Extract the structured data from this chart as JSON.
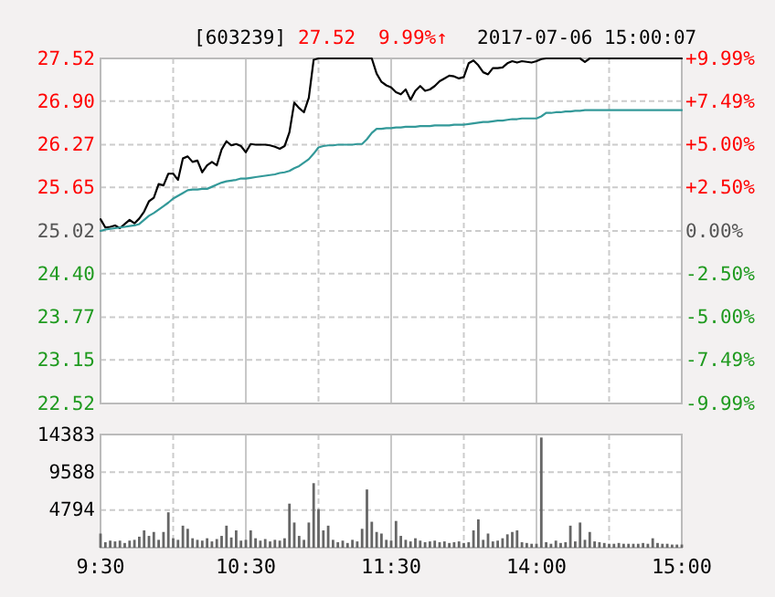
{
  "chart_data": [
    {
      "type": "line",
      "title": "[603239]",
      "annotations": [
        "27.52",
        "9.99%↑",
        "2017-07-06 15:00:07"
      ],
      "categories": [
        null,
        null,
        null,
        null,
        null,
        null,
        null,
        null,
        null,
        null,
        null,
        null,
        null,
        null,
        null,
        null,
        null,
        null,
        null,
        null,
        null,
        null,
        null,
        null,
        null,
        null,
        null,
        null,
        null,
        null,
        null,
        null,
        null,
        null,
        null,
        null,
        null,
        null,
        null,
        null,
        null,
        null,
        null,
        null,
        null,
        null,
        null,
        null,
        null,
        null,
        null,
        null,
        null,
        null,
        null,
        null,
        null,
        null,
        null,
        null,
        null,
        null,
        null,
        null,
        null,
        null,
        null,
        null,
        null,
        null,
        null,
        null,
        null,
        null,
        null,
        null,
        null,
        null,
        null,
        null,
        null,
        null,
        null,
        null,
        null,
        null,
        null,
        null,
        null,
        null,
        null,
        null,
        null,
        null,
        null,
        null,
        null,
        null,
        null,
        null,
        null,
        null,
        null,
        null,
        null,
        null,
        null,
        null,
        null,
        null,
        null,
        null,
        null,
        null,
        null,
        null,
        null,
        null,
        null,
        null,
        null
      ],
      "ylim": [
        22.52,
        27.52
      ],
      "yticks": [
        22.52,
        23.15,
        23.77,
        {
          "value": 24.4,
          "label": "24.40"
        },
        25.02,
        25.65,
        26.27,
        {
          "value": 26.9,
          "label": "26.90"
        },
        27.52
      ],
      "y2lim": [
        -9.99,
        9.99
      ],
      "y2ticks": [
        {
          "value": -9.99,
          "label": "-9.99%"
        },
        {
          "value": -7.49,
          "label": "-7.49%"
        },
        {
          "value": -5,
          "label": "-5.00%"
        },
        {
          "value": -2.5,
          "label": "-2.50%"
        },
        {
          "value": 0,
          "label": "0.00%"
        },
        {
          "value": 2.5,
          "label": "+2.50%"
        },
        {
          "value": 5,
          "label": "+5.00%"
        },
        {
          "value": 7.49,
          "label": "+7.49%"
        },
        {
          "value": 9.99,
          "label": "+9.99%"
        }
      ],
      "tick_labels": "y",
      "grid": true,
      "series": [
        {
          "color": "#000000",
          "values": [
            25.19,
            25.07,
            25.08,
            25.1,
            25.06,
            25.12,
            25.18,
            25.13,
            25.2,
            25.3,
            25.45,
            25.5,
            25.7,
            25.68,
            25.85,
            25.85,
            25.76,
            26.07,
            26.1,
            26.02,
            26.04,
            25.87,
            25.97,
            26.02,
            25.97,
            26.2,
            26.32,
            26.26,
            26.28,
            26.25,
            26.16,
            26.28,
            26.27,
            26.27,
            26.27,
            26.26,
            26.24,
            26.21,
            26.25,
            26.45,
            26.88,
            26.8,
            26.74,
            26.95,
            27.5,
            27.52,
            27.52,
            27.52,
            27.52,
            27.52,
            27.52,
            27.52,
            27.52,
            27.52,
            27.52,
            27.52,
            27.52,
            27.3,
            27.18,
            27.13,
            27.1,
            27.03,
            27.0,
            27.07,
            26.92,
            27.05,
            27.12,
            27.05,
            27.07,
            27.12,
            27.19,
            27.23,
            27.27,
            27.26,
            27.23,
            27.25,
            27.45,
            27.49,
            27.42,
            27.32,
            27.29,
            27.38,
            27.38,
            27.39,
            27.45,
            27.48,
            27.46,
            27.48,
            27.47,
            27.46,
            27.48,
            27.51,
            27.52,
            27.52,
            27.52,
            27.52,
            27.52,
            27.52,
            27.52,
            27.52,
            27.47,
            27.52,
            27.52,
            27.52,
            27.52,
            27.52,
            27.52,
            27.52,
            27.52,
            27.52,
            27.52,
            27.52,
            27.52,
            27.52,
            27.52,
            27.52,
            27.52,
            27.52,
            27.52,
            27.52,
            27.52
          ]
        },
        {
          "color": "#339999",
          "values": [
            25.02,
            25.04,
            25.05,
            25.06,
            25.07,
            25.08,
            25.09,
            25.1,
            25.12,
            25.18,
            25.24,
            25.28,
            25.33,
            25.38,
            25.43,
            25.49,
            25.53,
            25.57,
            25.61,
            25.62,
            25.62,
            25.63,
            25.63,
            25.66,
            25.69,
            25.72,
            25.74,
            25.75,
            25.76,
            25.78,
            25.78,
            25.79,
            25.8,
            25.81,
            25.82,
            25.83,
            25.84,
            25.86,
            25.87,
            25.89,
            25.93,
            25.96,
            26.01,
            26.06,
            26.14,
            26.23,
            26.25,
            26.26,
            26.26,
            26.27,
            26.27,
            26.27,
            26.27,
            26.28,
            26.28,
            26.35,
            26.44,
            26.5,
            26.5,
            26.51,
            26.51,
            26.52,
            26.52,
            26.53,
            26.53,
            26.53,
            26.54,
            26.54,
            26.54,
            26.55,
            26.55,
            26.55,
            26.55,
            26.56,
            26.56,
            26.56,
            26.57,
            26.58,
            26.59,
            26.6,
            26.6,
            26.61,
            26.62,
            26.62,
            26.63,
            26.64,
            26.64,
            26.65,
            26.65,
            26.65,
            26.65,
            26.68,
            26.73,
            26.73,
            26.74,
            26.74,
            26.75,
            26.75,
            26.76,
            26.76,
            26.77,
            26.77,
            26.77,
            26.77,
            26.77,
            26.77,
            26.77,
            26.77,
            26.77,
            26.77,
            26.77,
            26.77,
            26.77,
            26.77,
            26.77,
            26.77,
            26.77,
            26.77,
            26.77,
            26.77,
            26.77
          ]
        }
      ]
    },
    {
      "type": "bar",
      "color": "#666666",
      "categories": [
        "9:30",
        null,
        null,
        null,
        null,
        null,
        null,
        null,
        null,
        null,
        null,
        null,
        null,
        null,
        null,
        null,
        null,
        null,
        null,
        null,
        null,
        null,
        null,
        null,
        null,
        null,
        null,
        null,
        null,
        null,
        "10:30",
        null,
        null,
        null,
        null,
        null,
        null,
        null,
        null,
        null,
        null,
        null,
        null,
        null,
        null,
        null,
        null,
        null,
        null,
        null,
        null,
        null,
        null,
        null,
        null,
        null,
        null,
        null,
        null,
        null,
        "11:30",
        null,
        null,
        null,
        null,
        null,
        null,
        null,
        null,
        null,
        null,
        null,
        null,
        null,
        null,
        null,
        null,
        null,
        null,
        null,
        null,
        null,
        null,
        null,
        null,
        null,
        null,
        null,
        null,
        null,
        "14:00",
        null,
        null,
        null,
        null,
        null,
        null,
        null,
        null,
        null,
        null,
        null,
        null,
        null,
        null,
        null,
        null,
        null,
        null,
        null,
        null,
        null,
        null,
        null,
        null,
        null,
        null,
        null,
        null,
        null,
        "15:00"
      ],
      "ylim": [
        0,
        14383
      ],
      "yticks": [
        4794,
        9588,
        14383
      ],
      "grid": true,
      "values": [
        1800,
        700,
        900,
        800,
        900,
        600,
        900,
        1000,
        1400,
        2200,
        1500,
        2000,
        1000,
        2000,
        4500,
        1200,
        1000,
        2800,
        2400,
        1200,
        1000,
        900,
        1200,
        800,
        1100,
        1500,
        2800,
        1300,
        2200,
        900,
        1000,
        2200,
        1200,
        900,
        1100,
        800,
        1000,
        900,
        1200,
        5600,
        3200,
        1500,
        1000,
        3200,
        8200,
        4900,
        2200,
        2800,
        1000,
        700,
        900,
        600,
        1000,
        800,
        2400,
        7400,
        3300,
        2000,
        1800,
        1000,
        900,
        3400,
        1500,
        1000,
        800,
        1200,
        900,
        700,
        800,
        900,
        700,
        800,
        600,
        700,
        800,
        600,
        700,
        2200,
        3600,
        1000,
        1800,
        800,
        900,
        1200,
        1700,
        2000,
        2200,
        700,
        600,
        500,
        500,
        14000,
        700,
        500,
        900,
        600,
        700,
        2800,
        800,
        3200,
        1000,
        2000,
        800,
        700,
        600,
        500,
        500,
        600,
        500,
        500,
        500,
        500,
        600,
        500,
        1200,
        600,
        500,
        500,
        400,
        400,
        400
      ]
    }
  ]
}
